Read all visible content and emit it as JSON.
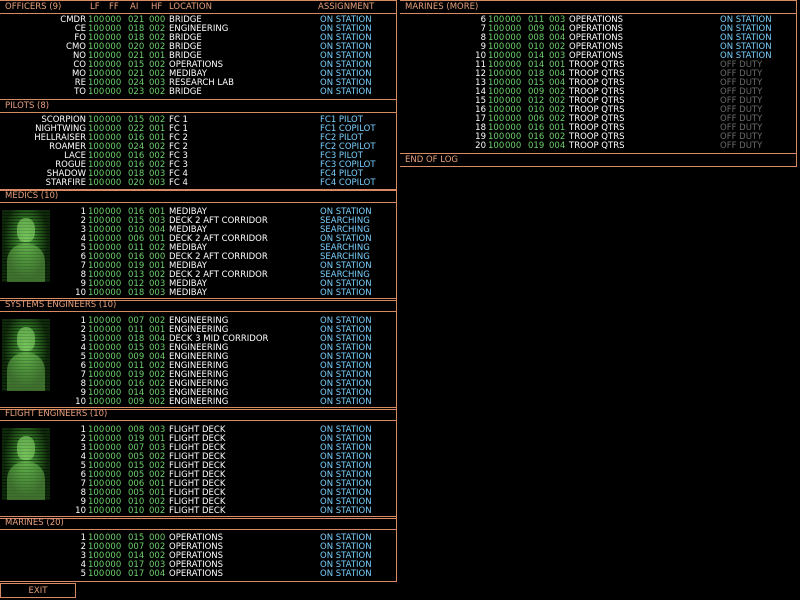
{
  "columns": {
    "lf": "LF",
    "ff": "FF",
    "ai": "AI",
    "hf": "HF",
    "location": "LOCATION",
    "assignment": "ASSIGNMENT"
  },
  "sections": [
    {
      "id": "officers",
      "title": "OFFICERS (9)",
      "show_columns": true,
      "portrait": false,
      "rows": [
        {
          "name": "CMDR",
          "lf": "100",
          "ff": "000",
          "ai": "021",
          "hf": "000",
          "location": "BRIDGE",
          "assignment": "ON STATION"
        },
        {
          "name": "CE",
          "lf": "100",
          "ff": "000",
          "ai": "018",
          "hf": "002",
          "location": "ENGINEERING",
          "assignment": "ON STATION"
        },
        {
          "name": "FO",
          "lf": "100",
          "ff": "000",
          "ai": "018",
          "hf": "002",
          "location": "BRIDGE",
          "assignment": "ON STATION"
        },
        {
          "name": "CMO",
          "lf": "100",
          "ff": "000",
          "ai": "020",
          "hf": "002",
          "location": "BRIDGE",
          "assignment": "ON STATION"
        },
        {
          "name": "NO",
          "lf": "100",
          "ff": "000",
          "ai": "021",
          "hf": "001",
          "location": "BRIDGE",
          "assignment": "ON STATION"
        },
        {
          "name": "CO",
          "lf": "100",
          "ff": "000",
          "ai": "015",
          "hf": "002",
          "location": "OPERATIONS",
          "assignment": "ON STATION"
        },
        {
          "name": "MO",
          "lf": "100",
          "ff": "000",
          "ai": "021",
          "hf": "002",
          "location": "MEDIBAY",
          "assignment": "ON STATION"
        },
        {
          "name": "RE",
          "lf": "100",
          "ff": "000",
          "ai": "024",
          "hf": "003",
          "location": "RESEARCH LAB",
          "assignment": "ON STATION"
        },
        {
          "name": "TO",
          "lf": "100",
          "ff": "000",
          "ai": "023",
          "hf": "002",
          "location": "BRIDGE",
          "assignment": "ON STATION"
        }
      ]
    },
    {
      "id": "pilots",
      "title": "PILOTS (8)",
      "show_columns": false,
      "portrait": false,
      "rows": [
        {
          "name": "SCORPION",
          "lf": "100",
          "ff": "000",
          "ai": "015",
          "hf": "002",
          "location": "FC 1",
          "assignment": "FC1 PILOT"
        },
        {
          "name": "NIGHTWING",
          "lf": "100",
          "ff": "000",
          "ai": "022",
          "hf": "001",
          "location": "FC 1",
          "assignment": "FC1 COPILOT"
        },
        {
          "name": "HELLRAISER",
          "lf": "100",
          "ff": "000",
          "ai": "016",
          "hf": "001",
          "location": "FC 2",
          "assignment": "FC2 PILOT"
        },
        {
          "name": "ROAMER",
          "lf": "100",
          "ff": "000",
          "ai": "024",
          "hf": "002",
          "location": "FC 2",
          "assignment": "FC2 COPILOT"
        },
        {
          "name": "LACE",
          "lf": "100",
          "ff": "000",
          "ai": "016",
          "hf": "002",
          "location": "FC 3",
          "assignment": "FC3 PILOT"
        },
        {
          "name": "ROGUE",
          "lf": "100",
          "ff": "000",
          "ai": "016",
          "hf": "002",
          "location": "FC 3",
          "assignment": "FC3 COPILOT"
        },
        {
          "name": "SHADOW",
          "lf": "100",
          "ff": "000",
          "ai": "018",
          "hf": "003",
          "location": "FC 4",
          "assignment": "FC4 PILOT"
        },
        {
          "name": "STARFIRE",
          "lf": "100",
          "ff": "000",
          "ai": "020",
          "hf": "003",
          "location": "FC 4",
          "assignment": "FC4 COPILOT"
        }
      ]
    },
    {
      "id": "medics",
      "title": "MEDICS (10)",
      "show_columns": false,
      "portrait": true,
      "rows": [
        {
          "name": "1",
          "lf": "100",
          "ff": "000",
          "ai": "016",
          "hf": "001",
          "location": "MEDIBAY",
          "assignment": "ON STATION"
        },
        {
          "name": "2",
          "lf": "100",
          "ff": "000",
          "ai": "015",
          "hf": "003",
          "location": "DECK 2 AFT CORRIDOR",
          "assignment": "SEARCHING"
        },
        {
          "name": "3",
          "lf": "100",
          "ff": "000",
          "ai": "010",
          "hf": "004",
          "location": "MEDIBAY",
          "assignment": "SEARCHING"
        },
        {
          "name": "4",
          "lf": "100",
          "ff": "000",
          "ai": "006",
          "hf": "001",
          "location": "DECK 2 AFT CORRIDOR",
          "assignment": "ON STATION"
        },
        {
          "name": "5",
          "lf": "100",
          "ff": "000",
          "ai": "011",
          "hf": "002",
          "location": "MEDIBAY",
          "assignment": "SEARCHING"
        },
        {
          "name": "6",
          "lf": "100",
          "ff": "000",
          "ai": "016",
          "hf": "000",
          "location": "DECK 2 AFT CORRIDOR",
          "assignment": "SEARCHING"
        },
        {
          "name": "7",
          "lf": "100",
          "ff": "000",
          "ai": "019",
          "hf": "001",
          "location": "MEDIBAY",
          "assignment": "ON STATION"
        },
        {
          "name": "8",
          "lf": "100",
          "ff": "000",
          "ai": "013",
          "hf": "002",
          "location": "DECK 2 AFT CORRIDOR",
          "assignment": "SEARCHING"
        },
        {
          "name": "9",
          "lf": "100",
          "ff": "000",
          "ai": "012",
          "hf": "003",
          "location": "MEDIBAY",
          "assignment": "ON STATION"
        },
        {
          "name": "10",
          "lf": "100",
          "ff": "000",
          "ai": "018",
          "hf": "003",
          "location": "MEDIBAY",
          "assignment": "ON STATION"
        }
      ]
    },
    {
      "id": "systems",
      "title": "SYSTEMS ENGINEERS (10)",
      "show_columns": false,
      "portrait": true,
      "rows": [
        {
          "name": "1",
          "lf": "100",
          "ff": "000",
          "ai": "007",
          "hf": "002",
          "location": "ENGINEERING",
          "assignment": "ON STATION"
        },
        {
          "name": "2",
          "lf": "100",
          "ff": "000",
          "ai": "011",
          "hf": "001",
          "location": "ENGINEERING",
          "assignment": "ON STATION"
        },
        {
          "name": "3",
          "lf": "100",
          "ff": "000",
          "ai": "018",
          "hf": "004",
          "location": "DECK 3 MID CORRIDOR",
          "assignment": "ON STATION"
        },
        {
          "name": "4",
          "lf": "100",
          "ff": "000",
          "ai": "015",
          "hf": "003",
          "location": "ENGINEERING",
          "assignment": "ON STATION"
        },
        {
          "name": "5",
          "lf": "100",
          "ff": "000",
          "ai": "009",
          "hf": "004",
          "location": "ENGINEERING",
          "assignment": "ON STATION"
        },
        {
          "name": "6",
          "lf": "100",
          "ff": "000",
          "ai": "011",
          "hf": "002",
          "location": "ENGINEERING",
          "assignment": "ON STATION"
        },
        {
          "name": "7",
          "lf": "100",
          "ff": "000",
          "ai": "019",
          "hf": "002",
          "location": "ENGINEERING",
          "assignment": "ON STATION"
        },
        {
          "name": "8",
          "lf": "100",
          "ff": "000",
          "ai": "016",
          "hf": "002",
          "location": "ENGINEERING",
          "assignment": "ON STATION"
        },
        {
          "name": "9",
          "lf": "100",
          "ff": "000",
          "ai": "014",
          "hf": "003",
          "location": "ENGINEERING",
          "assignment": "ON STATION"
        },
        {
          "name": "10",
          "lf": "100",
          "ff": "000",
          "ai": "009",
          "hf": "002",
          "location": "ENGINEERING",
          "assignment": "ON STATION"
        }
      ]
    },
    {
      "id": "flight",
      "title": "FLIGHT ENGINEERS (10)",
      "show_columns": false,
      "portrait": true,
      "rows": [
        {
          "name": "1",
          "lf": "100",
          "ff": "000",
          "ai": "008",
          "hf": "003",
          "location": "FLIGHT DECK",
          "assignment": "ON STATION"
        },
        {
          "name": "2",
          "lf": "100",
          "ff": "000",
          "ai": "019",
          "hf": "001",
          "location": "FLIGHT DECK",
          "assignment": "ON STATION"
        },
        {
          "name": "3",
          "lf": "100",
          "ff": "000",
          "ai": "007",
          "hf": "003",
          "location": "FLIGHT DECK",
          "assignment": "ON STATION"
        },
        {
          "name": "4",
          "lf": "100",
          "ff": "000",
          "ai": "005",
          "hf": "002",
          "location": "FLIGHT DECK",
          "assignment": "ON STATION"
        },
        {
          "name": "5",
          "lf": "100",
          "ff": "000",
          "ai": "015",
          "hf": "002",
          "location": "FLIGHT DECK",
          "assignment": "ON STATION"
        },
        {
          "name": "6",
          "lf": "100",
          "ff": "000",
          "ai": "005",
          "hf": "002",
          "location": "FLIGHT DECK",
          "assignment": "ON STATION"
        },
        {
          "name": "7",
          "lf": "100",
          "ff": "000",
          "ai": "006",
          "hf": "001",
          "location": "FLIGHT DECK",
          "assignment": "ON STATION"
        },
        {
          "name": "8",
          "lf": "100",
          "ff": "000",
          "ai": "005",
          "hf": "001",
          "location": "FLIGHT DECK",
          "assignment": "ON STATION"
        },
        {
          "name": "9",
          "lf": "100",
          "ff": "000",
          "ai": "010",
          "hf": "002",
          "location": "FLIGHT DECK",
          "assignment": "ON STATION"
        },
        {
          "name": "10",
          "lf": "100",
          "ff": "000",
          "ai": "010",
          "hf": "002",
          "location": "FLIGHT DECK",
          "assignment": "ON STATION"
        }
      ]
    },
    {
      "id": "marines",
      "title": "MARINES (20)",
      "show_columns": false,
      "portrait": false,
      "rows": [
        {
          "name": "1",
          "lf": "100",
          "ff": "000",
          "ai": "015",
          "hf": "000",
          "location": "OPERATIONS",
          "assignment": "ON STATION"
        },
        {
          "name": "2",
          "lf": "100",
          "ff": "000",
          "ai": "007",
          "hf": "002",
          "location": "OPERATIONS",
          "assignment": "ON STATION"
        },
        {
          "name": "3",
          "lf": "100",
          "ff": "000",
          "ai": "014",
          "hf": "002",
          "location": "OPERATIONS",
          "assignment": "ON STATION"
        },
        {
          "name": "4",
          "lf": "100",
          "ff": "000",
          "ai": "017",
          "hf": "003",
          "location": "OPERATIONS",
          "assignment": "ON STATION"
        },
        {
          "name": "5",
          "lf": "100",
          "ff": "000",
          "ai": "017",
          "hf": "004",
          "location": "OPERATIONS",
          "assignment": "ON STATION"
        }
      ]
    },
    {
      "id": "marines_more",
      "title": "MARINES (MORE)",
      "show_columns": false,
      "portrait": false,
      "rows": [
        {
          "name": "6",
          "lf": "100",
          "ff": "000",
          "ai": "011",
          "hf": "003",
          "location": "OPERATIONS",
          "assignment": "ON STATION"
        },
        {
          "name": "7",
          "lf": "100",
          "ff": "000",
          "ai": "009",
          "hf": "004",
          "location": "OPERATIONS",
          "assignment": "ON STATION"
        },
        {
          "name": "8",
          "lf": "100",
          "ff": "000",
          "ai": "008",
          "hf": "004",
          "location": "OPERATIONS",
          "assignment": "ON STATION"
        },
        {
          "name": "9",
          "lf": "100",
          "ff": "000",
          "ai": "010",
          "hf": "002",
          "location": "OPERATIONS",
          "assignment": "ON STATION"
        },
        {
          "name": "10",
          "lf": "100",
          "ff": "000",
          "ai": "014",
          "hf": "003",
          "location": "OPERATIONS",
          "assignment": "ON STATION"
        },
        {
          "name": "11",
          "lf": "100",
          "ff": "000",
          "ai": "014",
          "hf": "001",
          "location": "TROOP QTRS",
          "assignment": "OFF DUTY"
        },
        {
          "name": "12",
          "lf": "100",
          "ff": "000",
          "ai": "018",
          "hf": "004",
          "location": "TROOP QTRS",
          "assignment": "OFF DUTY"
        },
        {
          "name": "13",
          "lf": "100",
          "ff": "000",
          "ai": "015",
          "hf": "004",
          "location": "TROOP QTRS",
          "assignment": "OFF DUTY"
        },
        {
          "name": "14",
          "lf": "100",
          "ff": "000",
          "ai": "009",
          "hf": "002",
          "location": "TROOP QTRS",
          "assignment": "OFF DUTY"
        },
        {
          "name": "15",
          "lf": "100",
          "ff": "000",
          "ai": "012",
          "hf": "002",
          "location": "TROOP QTRS",
          "assignment": "OFF DUTY"
        },
        {
          "name": "16",
          "lf": "100",
          "ff": "000",
          "ai": "010",
          "hf": "002",
          "location": "TROOP QTRS",
          "assignment": "OFF DUTY"
        },
        {
          "name": "17",
          "lf": "100",
          "ff": "000",
          "ai": "006",
          "hf": "002",
          "location": "TROOP QTRS",
          "assignment": "OFF DUTY"
        },
        {
          "name": "18",
          "lf": "100",
          "ff": "000",
          "ai": "016",
          "hf": "001",
          "location": "TROOP QTRS",
          "assignment": "OFF DUTY"
        },
        {
          "name": "19",
          "lf": "100",
          "ff": "000",
          "ai": "016",
          "hf": "002",
          "location": "TROOP QTRS",
          "assignment": "OFF DUTY"
        },
        {
          "name": "20",
          "lf": "100",
          "ff": "000",
          "ai": "019",
          "hf": "004",
          "location": "TROOP QTRS",
          "assignment": "OFF DUTY"
        }
      ]
    }
  ],
  "end_of_log": "END OF LOG",
  "exit_label": "EXIT",
  "colors": {
    "header": "#e8a07c",
    "border": "#d88a64",
    "name": "#ffffff",
    "stats": "#6cd06c",
    "on_station": "#7ad0ff",
    "off_duty": "#6a6a6a"
  }
}
